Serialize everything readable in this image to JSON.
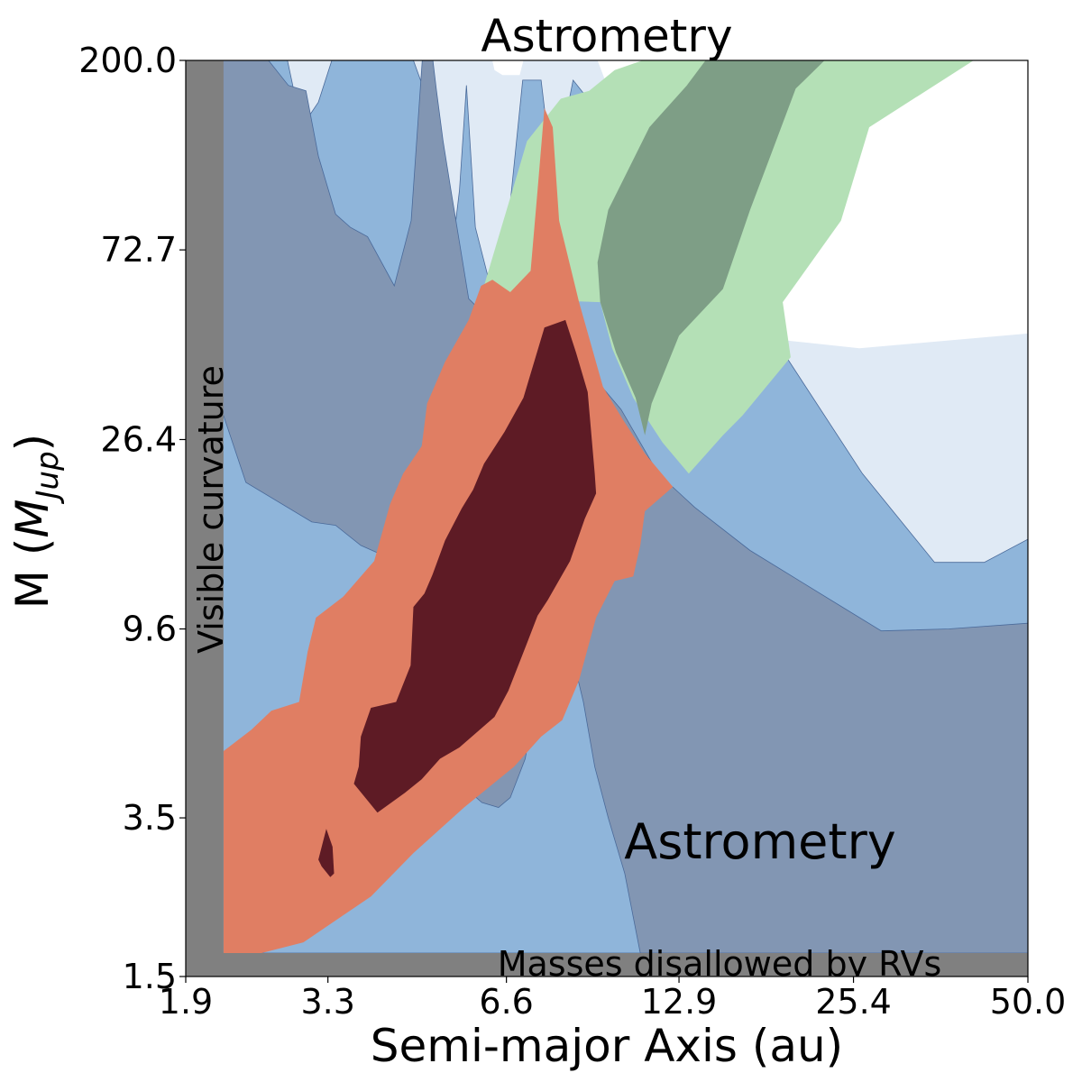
{
  "chart_data": {
    "type": "area",
    "title": "Astrometry",
    "xlabel": "Semi-major Axis (au)",
    "ylabel_prefix": "M (",
    "ylabel_symbol": "M",
    "ylabel_subscript": "Jup",
    "ylabel_suffix": ")",
    "xscale": "log",
    "yscale": "log",
    "xlim": [
      1.9,
      50.0
    ],
    "ylim": [
      1.5,
      200.0
    ],
    "xticks": [
      1.9,
      3.3,
      6.6,
      12.9,
      25.4,
      50.0
    ],
    "xtick_labels": [
      "1.9",
      "3.3",
      "6.6",
      "12.9",
      "25.4",
      "50.0"
    ],
    "yticks": [
      1.5,
      3.5,
      9.6,
      26.4,
      72.7,
      200.0
    ],
    "ytick_labels": [
      "1.5",
      "3.5",
      "9.6",
      "26.4",
      "72.7",
      "200.0"
    ],
    "annotations": {
      "curvature": "Visible curvature",
      "rv": "Masses disallowed by RVs",
      "astrometry": "Astrometry"
    },
    "excluded_regions": {
      "curvature_a_max": 2.2,
      "rv_mass_min": 1.7,
      "color": "#808080"
    },
    "colors": {
      "blue_light": "#e0eaf5",
      "blue_mid": "#8fb5da",
      "blue_dark": "#8296b3",
      "green_light": "#b4e0b6",
      "green_dark": "#7e9e86",
      "red_light": "#e07e63",
      "red_dark": "#5e1b25"
    },
    "series": [
      {
        "color_key": "blue_light",
        "points": [
          [
            1.9,
            200
          ],
          [
            50,
            200
          ],
          [
            50,
            1.7
          ],
          [
            1.9,
            1.7
          ]
        ]
      },
      {
        "color_key": "blue_mid",
        "points": [
          [
            1.9,
            200
          ],
          [
            2.82,
            200
          ],
          [
            2.98,
            140
          ],
          [
            3.18,
            160
          ],
          [
            3.35,
            200
          ],
          [
            4.6,
            200
          ],
          [
            5.05,
            140
          ],
          [
            5.35,
            72.7
          ],
          [
            5.5,
            100
          ],
          [
            5.65,
            175
          ],
          [
            5.85,
            82
          ],
          [
            6.2,
            60
          ],
          [
            6.45,
            56
          ],
          [
            7.03,
            180
          ],
          [
            7.55,
            180
          ],
          [
            7.91,
            105
          ],
          [
            8.55,
            180
          ],
          [
            9.5,
            150
          ],
          [
            15.4,
            68
          ],
          [
            26.3,
            22
          ],
          [
            34.8,
            13.7
          ],
          [
            42.2,
            13.7
          ],
          [
            50,
            15.5
          ],
          [
            50,
            1.7
          ],
          [
            1.9,
            1.7
          ]
        ]
      },
      {
        "color_key": "white",
        "points": [
          [
            7.45,
            200
          ],
          [
            50,
            200
          ],
          [
            50,
            46.5
          ],
          [
            26,
            43
          ],
          [
            19,
            45
          ],
          [
            14.3,
            60
          ],
          [
            13.5,
            80
          ],
          [
            12.5,
            90
          ],
          [
            10,
            160
          ],
          [
            9.4,
            200
          ]
        ]
      },
      {
        "color_key": "white",
        "points": [
          [
            6.25,
            200
          ],
          [
            7.05,
            200
          ],
          [
            6.95,
            185
          ],
          [
            6.5,
            185
          ],
          [
            6.3,
            190
          ]
        ]
      },
      {
        "color_key": "blue_dark",
        "points": [
          [
            1.9,
            200
          ],
          [
            2.62,
            200
          ],
          [
            2.83,
            175
          ],
          [
            3.03,
            170
          ],
          [
            3.18,
            120
          ],
          [
            3.4,
            88
          ],
          [
            3.6,
            82
          ],
          [
            3.85,
            78
          ],
          [
            4.27,
            60
          ],
          [
            4.56,
            85
          ],
          [
            4.76,
            200
          ],
          [
            4.96,
            200
          ],
          [
            5.03,
            170
          ],
          [
            5.16,
            130
          ],
          [
            5.32,
            100
          ],
          [
            5.7,
            56
          ],
          [
            6.48,
            47
          ],
          [
            7.03,
            52
          ],
          [
            8.8,
            40
          ],
          [
            10.3,
            31
          ],
          [
            11.9,
            22
          ],
          [
            13.7,
            18.4
          ],
          [
            17,
            14.6
          ],
          [
            24.3,
            10.8
          ],
          [
            28.3,
            9.5
          ],
          [
            36.8,
            9.6
          ],
          [
            50,
            9.9
          ],
          [
            50,
            1.7
          ],
          [
            11.1,
            1.7
          ],
          [
            10.45,
            2.6
          ],
          [
            9.8,
            3.5
          ],
          [
            9.3,
            4.6
          ],
          [
            8.9,
            6.5
          ],
          [
            8.1,
            11.2
          ],
          [
            7.95,
            13
          ],
          [
            7.8,
            10
          ],
          [
            7.4,
            6.6
          ],
          [
            7.1,
            4.8
          ],
          [
            6.7,
            3.9
          ],
          [
            6.4,
            3.7
          ],
          [
            6.0,
            3.8
          ],
          [
            5.75,
            4.0
          ],
          [
            5.55,
            5.6
          ],
          [
            5.0,
            10.6
          ],
          [
            4.6,
            13
          ],
          [
            4.2,
            14
          ],
          [
            3.75,
            15
          ],
          [
            3.4,
            16.7
          ],
          [
            3.1,
            17
          ],
          [
            2.4,
            21
          ],
          [
            2.2,
            30
          ],
          [
            1.9,
            30
          ]
        ]
      },
      {
        "color_key": "green_light",
        "points": [
          [
            11.2,
            200
          ],
          [
            40.5,
            200
          ],
          [
            27,
            140
          ],
          [
            24.2,
            85
          ],
          [
            19.3,
            55
          ],
          [
            19.9,
            41
          ],
          [
            16.5,
            30
          ],
          [
            15.3,
            27
          ],
          [
            13.4,
            22
          ],
          [
            12.1,
            26
          ],
          [
            10.8,
            33
          ],
          [
            9.95,
            43
          ],
          [
            9.5,
            55
          ],
          [
            6.45,
            56
          ],
          [
            6.05,
            60
          ],
          [
            6.9,
            110
          ],
          [
            7.15,
            130
          ],
          [
            8.15,
            163
          ],
          [
            9.1,
            170
          ],
          [
            10.05,
            190
          ]
        ]
      },
      {
        "color_key": "green_dark",
        "points": [
          [
            22.7,
            200
          ],
          [
            20.3,
            172
          ],
          [
            18.6,
            125
          ],
          [
            17.0,
            90
          ],
          [
            15.3,
            59
          ],
          [
            12.9,
            46
          ],
          [
            11.6,
            32
          ],
          [
            11.3,
            27
          ],
          [
            10.9,
            33
          ],
          [
            10.1,
            42
          ],
          [
            9.5,
            55
          ],
          [
            9.4,
            68
          ],
          [
            9.8,
            90
          ],
          [
            11.5,
            140
          ],
          [
            13.3,
            175
          ],
          [
            14.3,
            200
          ]
        ]
      },
      {
        "color_key": "red_light",
        "points": [
          [
            2.2,
            1.7
          ],
          [
            2.55,
            1.7
          ],
          [
            3.0,
            1.8
          ],
          [
            3.9,
            2.3
          ],
          [
            4.6,
            2.9
          ],
          [
            5.6,
            3.7
          ],
          [
            6.8,
            4.6
          ],
          [
            7.55,
            5.4
          ],
          [
            8.2,
            5.9
          ],
          [
            8.75,
            7.3
          ],
          [
            9.35,
            10.2
          ],
          [
            10.05,
            12.4
          ],
          [
            10.8,
            12.7
          ],
          [
            11.1,
            15
          ],
          [
            11.3,
            18
          ],
          [
            12.6,
            20.5
          ],
          [
            11.3,
            24.5
          ],
          [
            10.35,
            29.5
          ],
          [
            9.6,
            35
          ],
          [
            8.75,
            55
          ],
          [
            8.1,
            85
          ],
          [
            7.9,
            140
          ],
          [
            7.65,
            155
          ],
          [
            7.45,
            100
          ],
          [
            7.25,
            65
          ],
          [
            6.7,
            58
          ],
          [
            6.25,
            62
          ],
          [
            5.98,
            60
          ],
          [
            5.7,
            50
          ],
          [
            5.2,
            40
          ],
          [
            4.85,
            32
          ],
          [
            4.75,
            25.5
          ],
          [
            4.42,
            22
          ],
          [
            4.2,
            18.7
          ],
          [
            3.95,
            13.8
          ],
          [
            3.5,
            11.4
          ],
          [
            3.15,
            10.2
          ],
          [
            3.05,
            8.5
          ],
          [
            2.95,
            6.5
          ],
          [
            2.65,
            6.2
          ],
          [
            2.45,
            5.6
          ],
          [
            2.2,
            5
          ]
        ]
      },
      {
        "color_key": "red_dark",
        "points": [
          [
            4.0,
            3.6
          ],
          [
            3.65,
            4.2
          ],
          [
            3.72,
            4.6
          ],
          [
            3.75,
            5.4
          ],
          [
            3.9,
            6.3
          ],
          [
            4.3,
            6.5
          ],
          [
            4.55,
            7.9
          ],
          [
            4.6,
            10.8
          ],
          [
            4.8,
            11.6
          ],
          [
            4.95,
            12.8
          ],
          [
            5.2,
            15.4
          ],
          [
            5.55,
            18.3
          ],
          [
            5.8,
            20.2
          ],
          [
            6.05,
            23.2
          ],
          [
            6.55,
            27.5
          ],
          [
            7.05,
            33
          ],
          [
            7.65,
            48
          ],
          [
            8.3,
            50
          ],
          [
            8.65,
            42
          ],
          [
            9.05,
            34
          ],
          [
            9.3,
            22
          ],
          [
            9.35,
            19.8
          ],
          [
            8.95,
            17.3
          ],
          [
            8.45,
            13.8
          ],
          [
            7.75,
            11.2
          ],
          [
            7.45,
            10.3
          ],
          [
            7.15,
            8.9
          ],
          [
            6.65,
            6.9
          ],
          [
            6.3,
            6
          ],
          [
            5.5,
            5.1
          ],
          [
            5.1,
            4.8
          ],
          [
            4.75,
            4.3
          ],
          [
            4.45,
            4.0
          ]
        ]
      },
      {
        "color_key": "red_dark",
        "points": [
          [
            3.18,
            2.8
          ],
          [
            3.28,
            3.3
          ],
          [
            3.36,
            3.0
          ],
          [
            3.38,
            2.6
          ],
          [
            3.33,
            2.55
          ],
          [
            3.22,
            2.7
          ]
        ]
      }
    ]
  }
}
